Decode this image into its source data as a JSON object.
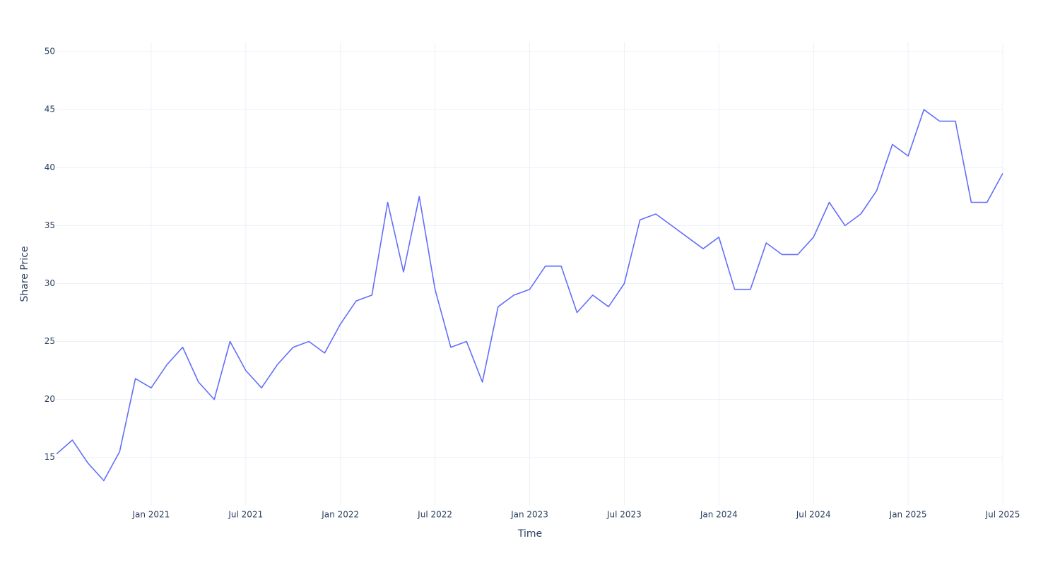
{
  "chart_data": {
    "type": "line",
    "x_label": "Time",
    "y_label": "Share Price",
    "x": [
      "2020-07",
      "2020-08",
      "2020-09",
      "2020-10",
      "2020-11",
      "2020-12",
      "2021-01",
      "2021-02",
      "2021-03",
      "2021-04",
      "2021-05",
      "2021-06",
      "2021-07",
      "2021-08",
      "2021-09",
      "2021-10",
      "2021-11",
      "2021-12",
      "2022-01",
      "2022-02",
      "2022-03",
      "2022-04",
      "2022-05",
      "2022-06",
      "2022-07",
      "2022-08",
      "2022-09",
      "2022-10",
      "2022-11",
      "2022-12",
      "2023-01",
      "2023-02",
      "2023-03",
      "2023-04",
      "2023-05",
      "2023-06",
      "2023-07",
      "2023-08",
      "2023-09",
      "2023-10",
      "2023-11",
      "2023-12",
      "2024-01",
      "2024-02",
      "2024-03",
      "2024-04",
      "2024-05",
      "2024-06",
      "2024-07",
      "2024-08",
      "2024-09",
      "2024-10",
      "2024-11",
      "2024-12",
      "2025-01",
      "2025-02",
      "2025-03",
      "2025-04",
      "2025-05",
      "2025-06",
      "2025-07"
    ],
    "series": [
      {
        "name": "Share Price",
        "color": "#636efa",
        "values": [
          15.3,
          16.5,
          14.5,
          13,
          15.5,
          21.8,
          21,
          23,
          24.5,
          21.5,
          20,
          25,
          22.5,
          21,
          23,
          24.5,
          25,
          24,
          26.5,
          28.5,
          29,
          37,
          31,
          37.5,
          29.5,
          24.5,
          25,
          21.5,
          28,
          29,
          29.5,
          31.5,
          31.5,
          27.5,
          29,
          28,
          30,
          35.5,
          36,
          35,
          34,
          33,
          34,
          29.5,
          29.5,
          33.5,
          32.5,
          32.5,
          34,
          37,
          35,
          36,
          38,
          42,
          41,
          45,
          44,
          44,
          37,
          37,
          39.5
        ]
      }
    ],
    "xlim": [
      "2020-07",
      "2025-07"
    ],
    "xticks": [
      {
        "value": "2021-01",
        "label": "Jan 2021"
      },
      {
        "value": "2021-07",
        "label": "Jul 2021"
      },
      {
        "value": "2022-01",
        "label": "Jan 2022"
      },
      {
        "value": "2022-07",
        "label": "Jul 2022"
      },
      {
        "value": "2023-01",
        "label": "Jan 2023"
      },
      {
        "value": "2023-07",
        "label": "Jul 2023"
      },
      {
        "value": "2024-01",
        "label": "Jan 2024"
      },
      {
        "value": "2024-07",
        "label": "Jul 2024"
      },
      {
        "value": "2025-01",
        "label": "Jan 2025"
      },
      {
        "value": "2025-07",
        "label": "Jul 2025"
      }
    ],
    "ylim": [
      10.9,
      50.8
    ],
    "yticks": [
      15,
      20,
      25,
      30,
      35,
      40,
      45,
      50
    ],
    "grid": true
  }
}
